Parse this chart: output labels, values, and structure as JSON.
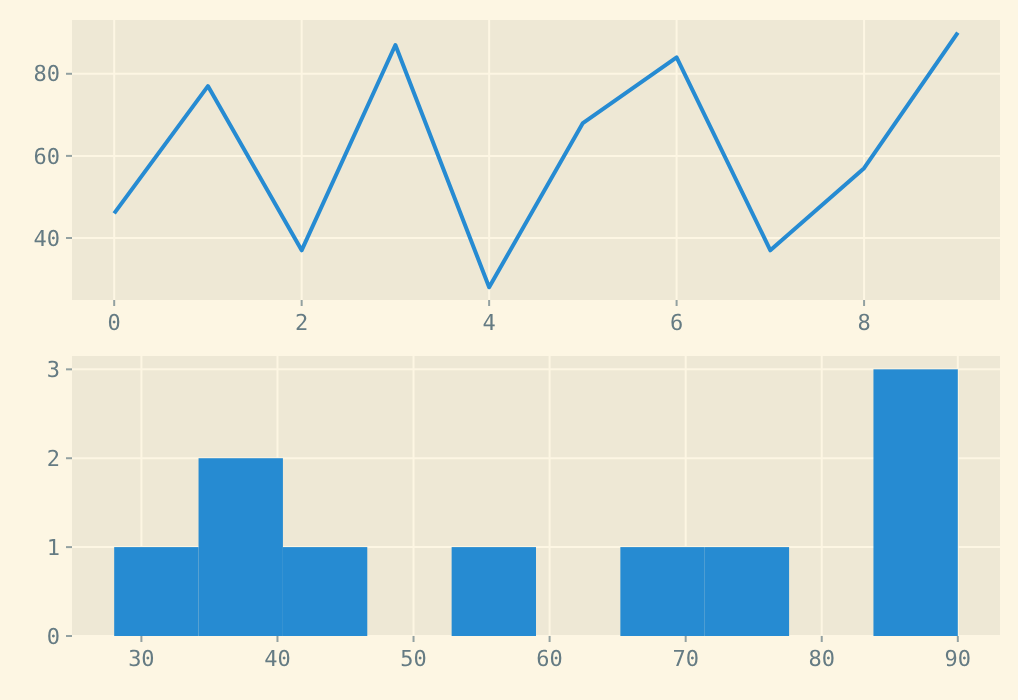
{
  "chart_data": [
    {
      "type": "line",
      "x": [
        0,
        1,
        2,
        3,
        4,
        5,
        6,
        7,
        8,
        9
      ],
      "values": [
        46,
        77,
        37,
        87,
        28,
        68,
        84,
        37,
        57,
        90
      ],
      "color": "#268bd2",
      "xlim": [
        -0.45,
        9.45
      ],
      "ylim": [
        24.9,
        93.1
      ],
      "xticks": [
        0,
        2,
        4,
        6,
        8
      ],
      "yticks": [
        40,
        60,
        80
      ],
      "grid": true,
      "marker": "none",
      "line_style": "solid"
    },
    {
      "type": "histogram",
      "bins": [
        28,
        34.2,
        40.4,
        46.6,
        52.8,
        59,
        65.2,
        71.4,
        77.6,
        83.8,
        90
      ],
      "values": [
        1,
        2,
        1,
        0,
        1,
        0,
        1,
        1,
        0,
        3
      ],
      "color": "#268bd2",
      "xlim": [
        24.9,
        93.1
      ],
      "ylim": [
        0,
        3.15
      ],
      "xticks": [
        30,
        40,
        50,
        60,
        70,
        80,
        90
      ],
      "yticks": [
        0,
        1,
        2,
        3
      ],
      "grid": true
    }
  ]
}
